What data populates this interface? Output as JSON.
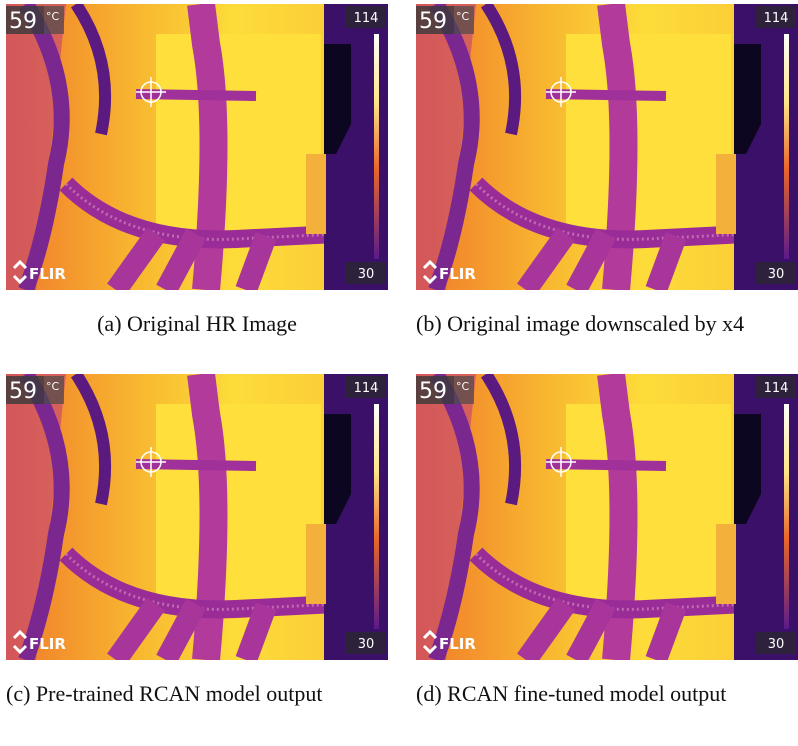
{
  "panels": [
    {
      "image": {
        "temp": "59",
        "unit": "°C",
        "max": "114",
        "min": "30",
        "brand": "FLIR"
      },
      "label": "(a)",
      "caption": "Original HR Image"
    },
    {
      "image": {
        "temp": "59",
        "unit": "°C",
        "max": "114",
        "min": "30",
        "brand": "FLIR"
      },
      "label": "(b)",
      "caption": "Original image downscaled by x4"
    },
    {
      "image": {
        "temp": "59",
        "unit": "°C",
        "max": "114",
        "min": "30",
        "brand": "FLIR"
      },
      "label": "(c)",
      "caption": "Pre-trained RCAN model output"
    },
    {
      "image": {
        "temp": "59",
        "unit": "°C",
        "max": "114",
        "min": "30",
        "brand": "FLIR"
      },
      "label": "(d)",
      "caption": "RCAN fine-tuned model output"
    }
  ]
}
